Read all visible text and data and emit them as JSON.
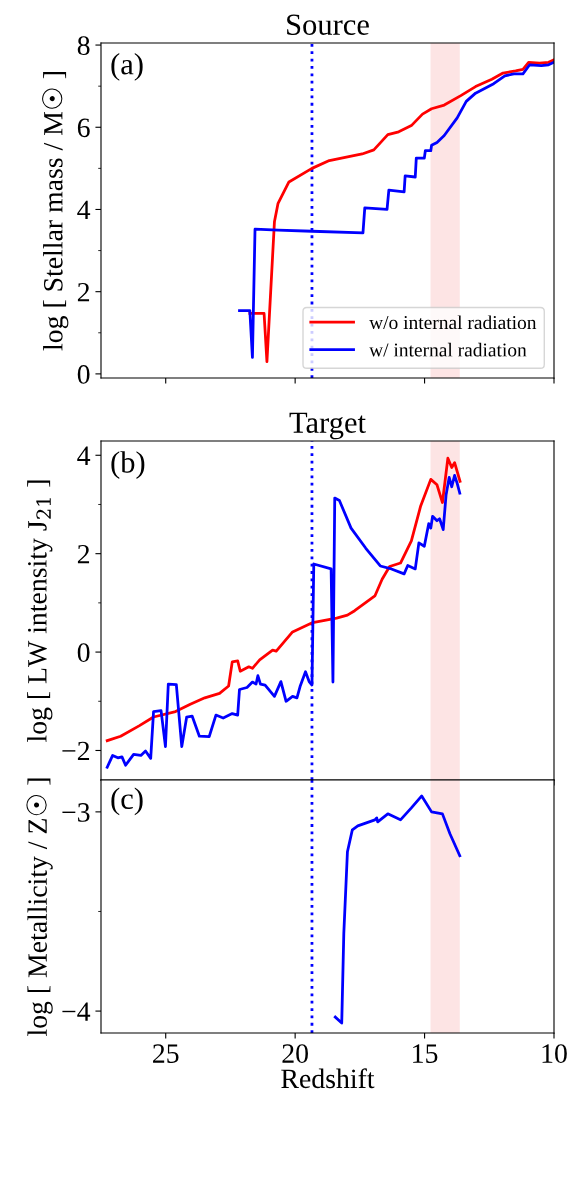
{
  "chart_data": [
    {
      "type": "line",
      "title": "Source",
      "ylabel": "log [ Stellar mass / M☉ ]",
      "annotations": [
        "(a)"
      ],
      "xlim": [
        27.5,
        10
      ],
      "xticks": [
        25,
        20,
        15,
        10
      ],
      "ylim": [
        -0.1,
        8.05
      ],
      "yticks": [
        0,
        2,
        4,
        6,
        8,
        {
          "value": 1,
          "label": null
        },
        {
          "value": 3,
          "label": null
        },
        {
          "value": 5,
          "label": null
        },
        {
          "value": 7,
          "label": null
        }
      ],
      "tick_labels": "y",
      "legend": "bottom right",
      "grid": false,
      "ref_lines": [
        {
          "axis": "x",
          "value": 19.35,
          "color": "#0000ff",
          "line_style": "dotted"
        }
      ],
      "bands": [
        {
          "axis": "x",
          "from": 14.77,
          "to": 13.64,
          "color": "#fde4e4"
        }
      ],
      "series": [
        {
          "name": "w/o internal radiation",
          "color": "#ff0000",
          "x": [
            21.75,
            21.2,
            21.09,
            20.8,
            20.66,
            20.24,
            19.35,
            18.68,
            17.41,
            16.96,
            16.42,
            16.0,
            15.51,
            15.08,
            14.73,
            14.24,
            13.6,
            13.03,
            12.4,
            11.97,
            11.48,
            11.2,
            10.98,
            10.56,
            10.21,
            10.0
          ],
          "values": [
            1.47,
            1.47,
            0.3,
            3.7,
            4.15,
            4.67,
            5.0,
            5.19,
            5.35,
            5.45,
            5.82,
            5.89,
            6.04,
            6.32,
            6.45,
            6.54,
            6.77,
            6.99,
            7.17,
            7.32,
            7.37,
            7.41,
            7.58,
            7.56,
            7.58,
            7.64
          ]
        },
        {
          "name": "w/ internal radiation",
          "color": "#0000ff",
          "x": [
            22.15,
            21.75,
            21.65,
            21.55,
            20.66,
            19.35,
            17.38,
            17.31,
            16.45,
            16.38,
            15.79,
            15.75,
            15.36,
            15.32,
            15.01,
            14.97,
            14.76,
            14.73,
            14.52,
            14.24,
            13.74,
            13.39,
            13.03,
            12.33,
            11.9,
            11.55,
            11.2,
            10.94,
            10.49,
            10.21,
            10.0
          ],
          "values": [
            1.54,
            1.54,
            0.4,
            3.52,
            3.5,
            3.47,
            3.43,
            4.04,
            4.0,
            4.47,
            4.43,
            4.82,
            4.79,
            5.25,
            5.25,
            5.43,
            5.43,
            5.56,
            5.63,
            5.8,
            6.23,
            6.63,
            6.83,
            7.06,
            7.25,
            7.3,
            7.3,
            7.52,
            7.5,
            7.52,
            7.58
          ]
        }
      ]
    },
    {
      "type": "line",
      "title": "Target",
      "ylabel": "log [ LW intensity J$_{21}$ ]",
      "annotations": [
        "(b)"
      ],
      "xlim": [
        27.5,
        10
      ],
      "xticks": [
        25,
        20,
        15,
        10
      ],
      "ylim": [
        -2.6,
        4.29
      ],
      "yticks": [
        -2,
        0,
        2,
        4,
        {
          "value": -1,
          "label": null
        },
        {
          "value": 1,
          "label": null
        },
        {
          "value": 3,
          "label": null
        }
      ],
      "tick_labels": "y",
      "grid": false,
      "ref_lines": [
        {
          "axis": "x",
          "value": 19.35,
          "color": "#0000ff",
          "line_style": "dotted"
        }
      ],
      "bands": [
        {
          "axis": "x",
          "from": 14.77,
          "to": 13.64,
          "color": "#fde4e4"
        }
      ],
      "series": [
        {
          "color": "#ff0000",
          "x": [
            27.26,
            26.74,
            26.03,
            25.47,
            24.62,
            24.05,
            23.49,
            22.92,
            22.57,
            22.43,
            22.22,
            22.12,
            21.79,
            21.65,
            21.37,
            20.87,
            20.73,
            20.1,
            19.32,
            18.4,
            17.98,
            17.7,
            16.92,
            16.64,
            16.35,
            15.93,
            15.51,
            15.15,
            14.76,
            14.52,
            14.31,
            14.1,
            13.95,
            13.84,
            13.63
          ],
          "values": [
            -1.8,
            -1.71,
            -1.5,
            -1.32,
            -1.21,
            -1.06,
            -0.93,
            -0.84,
            -0.69,
            -0.2,
            -0.18,
            -0.39,
            -0.3,
            -0.33,
            -0.16,
            0.04,
            0.02,
            0.41,
            0.6,
            0.69,
            0.75,
            0.84,
            1.14,
            1.48,
            1.74,
            1.81,
            2.26,
            2.97,
            3.51,
            3.4,
            3.04,
            3.94,
            3.75,
            3.85,
            3.47
          ]
        },
        {
          "color": "#0000ff",
          "x": [
            27.26,
            27.05,
            26.85,
            26.69,
            26.55,
            26.24,
            25.96,
            25.78,
            25.58,
            25.47,
            25.18,
            25.01,
            24.9,
            24.59,
            24.38,
            24.19,
            23.98,
            23.7,
            23.32,
            23.06,
            22.78,
            22.43,
            22.22,
            22.15,
            21.86,
            21.65,
            21.51,
            21.44,
            21.34,
            21.16,
            20.8,
            20.55,
            20.35,
            20.1,
            19.93,
            19.81,
            19.6,
            19.46,
            19.35,
            19.28,
            18.61,
            18.54,
            18.47,
            18.29,
            17.84,
            17.27,
            16.71,
            16.28,
            15.79,
            15.65,
            15.36,
            15.22,
            15.01,
            14.84,
            14.76,
            14.69,
            14.52,
            14.42,
            14.28,
            14.17,
            14.05,
            13.95,
            13.84,
            13.74,
            13.64
          ],
          "values": [
            -2.34,
            -2.1,
            -2.15,
            -2.13,
            -2.3,
            -2.08,
            -2.1,
            -2.01,
            -2.16,
            -1.21,
            -1.19,
            -1.92,
            -0.65,
            -0.66,
            -1.92,
            -1.32,
            -1.3,
            -1.71,
            -1.72,
            -1.28,
            -1.34,
            -1.25,
            -1.28,
            -0.76,
            -0.72,
            -0.61,
            -0.65,
            -0.48,
            -0.65,
            -0.67,
            -0.9,
            -0.6,
            -1.0,
            -0.9,
            -0.93,
            -0.7,
            -0.4,
            -0.6,
            -0.67,
            1.79,
            1.69,
            -0.61,
            3.13,
            3.08,
            2.52,
            2.11,
            1.75,
            1.69,
            1.59,
            1.76,
            1.69,
            2.22,
            2.15,
            2.61,
            2.52,
            2.76,
            2.67,
            2.71,
            2.49,
            3.19,
            3.55,
            3.36,
            3.59,
            3.43,
            3.23
          ]
        }
      ]
    },
    {
      "type": "line",
      "ylabel": "log [ Metallicity / Z☉ ]",
      "xlabel": "Redshift",
      "annotations": [
        "(c)"
      ],
      "xlim": [
        27.5,
        10
      ],
      "xticks": [
        25,
        20,
        15,
        10
      ],
      "ylim": [
        -4.11,
        -2.84
      ],
      "yticks": [
        -3,
        -4,
        {
          "value": -3.5,
          "label": null
        }
      ],
      "grid": false,
      "ref_lines": [
        {
          "axis": "x",
          "value": 19.35,
          "color": "#0000ff",
          "line_style": "dotted"
        }
      ],
      "bands": [
        {
          "axis": "x",
          "from": 14.77,
          "to": 13.64,
          "color": "#fde4e4"
        }
      ],
      "series": [
        {
          "color": "#0000ff",
          "x": [
            18.45,
            18.2,
            18.12,
            17.98,
            17.79,
            17.58,
            16.92,
            16.85,
            16.81,
            16.42,
            15.93,
            15.51,
            15.11,
            14.73,
            14.31,
            14.02,
            13.64
          ],
          "values": [
            -4.03,
            -4.06,
            -3.61,
            -3.2,
            -3.09,
            -3.07,
            -3.04,
            -3.03,
            -3.05,
            -3.01,
            -3.04,
            -2.98,
            -2.92,
            -3.0,
            -3.01,
            -3.11,
            -3.22
          ]
        }
      ]
    }
  ]
}
